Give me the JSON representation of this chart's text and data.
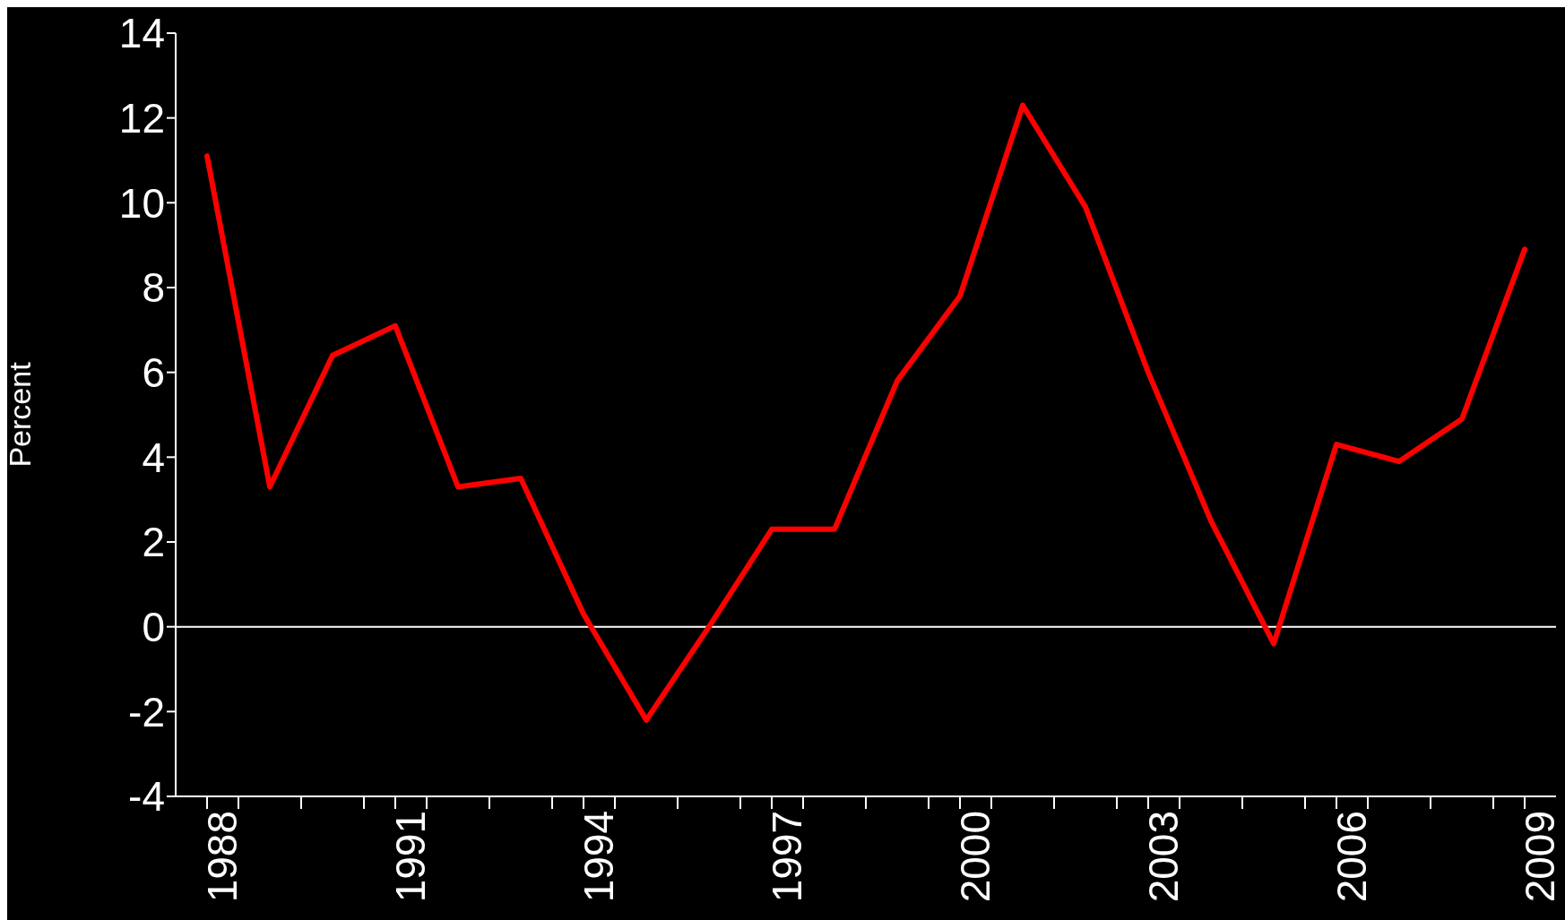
{
  "chart_data": {
    "type": "line",
    "ylabel": "Percent",
    "x": [
      1988,
      1989,
      1990,
      1991,
      1992,
      1993,
      1994,
      1995,
      1996,
      1997,
      1998,
      1999,
      2000,
      2001,
      2002,
      2003,
      2004,
      2005,
      2006,
      2007,
      2008,
      2009
    ],
    "series": [
      {
        "color": "#ff0000",
        "values": [
          11.1,
          3.3,
          6.4,
          7.1,
          3.3,
          3.5,
          0.3,
          -2.2,
          0.0,
          2.3,
          2.3,
          5.8,
          7.8,
          12.3,
          9.9,
          6.0,
          2.5,
          -0.4,
          4.3,
          3.9,
          4.9,
          8.9
        ]
      }
    ],
    "xlim": [
      1987.5,
      2009.5
    ],
    "xticks": [
      1988,
      {
        "value": 1988.5,
        "label": null
      },
      {
        "value": 1989.5,
        "label": null
      },
      {
        "value": 1990.5,
        "label": null
      },
      1991,
      {
        "value": 1991.5,
        "label": null
      },
      {
        "value": 1992.5,
        "label": null
      },
      {
        "value": 1993.5,
        "label": null
      },
      1994,
      {
        "value": 1994.5,
        "label": null
      },
      {
        "value": 1995.5,
        "label": null
      },
      {
        "value": 1996.5,
        "label": null
      },
      1997,
      {
        "value": 1997.5,
        "label": null
      },
      {
        "value": 1998.5,
        "label": null
      },
      {
        "value": 1999.5,
        "label": null
      },
      2000,
      {
        "value": 2000.5,
        "label": null
      },
      {
        "value": 2001.5,
        "label": null
      },
      {
        "value": 2002.5,
        "label": null
      },
      2003,
      {
        "value": 2003.5,
        "label": null
      },
      {
        "value": 2004.5,
        "label": null
      },
      {
        "value": 2005.5,
        "label": null
      },
      2006,
      {
        "value": 2006.5,
        "label": null
      },
      {
        "value": 2007.5,
        "label": null
      },
      {
        "value": 2008.5,
        "label": null
      },
      2009
    ],
    "ylim": [
      -4,
      14
    ],
    "yticks": [
      -4,
      -2,
      0,
      2,
      4,
      6,
      8,
      10,
      12,
      14
    ],
    "ref_lines": [
      {
        "axis": "y",
        "value": 0,
        "color": "#ffffff"
      }
    ],
    "grid": false,
    "legend": false,
    "marker": "none",
    "line_style": "solid"
  }
}
